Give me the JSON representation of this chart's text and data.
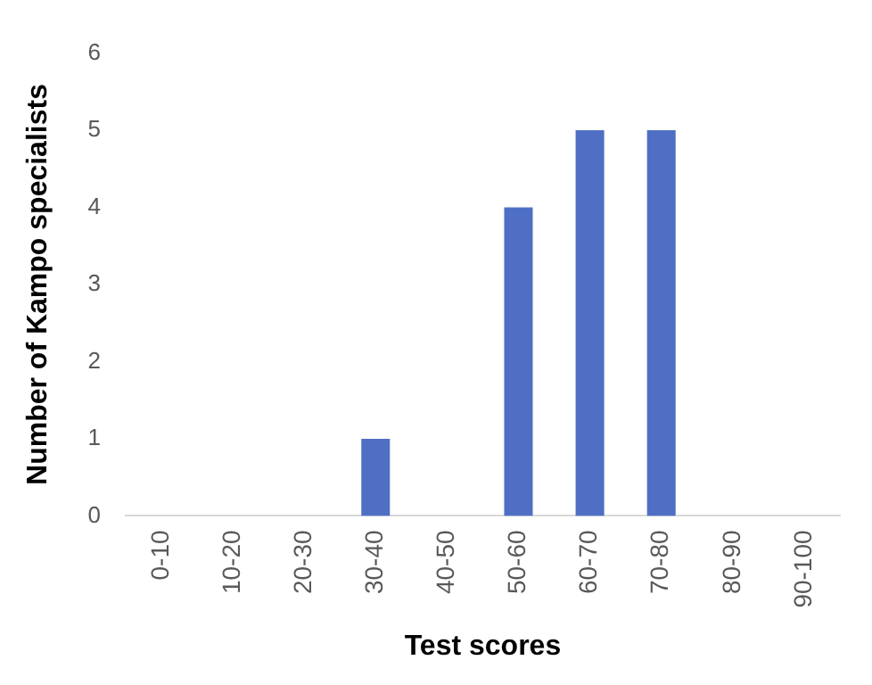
{
  "chart_data": {
    "type": "bar",
    "xlabel": "Test scores",
    "ylabel": "Number of Kampo specialists",
    "categories": [
      "0-10",
      "10-20",
      "20-30",
      "30-40",
      "40-50",
      "50-60",
      "60-70",
      "70-80",
      "80-90",
      "90-100"
    ],
    "values": [
      0,
      0,
      0,
      1,
      0,
      4,
      5,
      5,
      0,
      0
    ],
    "color": "#4f6fc4",
    "ylim": [
      0,
      6
    ],
    "yticks": [
      0,
      1,
      2,
      3,
      4,
      5,
      6
    ],
    "grid": false,
    "legend": false
  }
}
